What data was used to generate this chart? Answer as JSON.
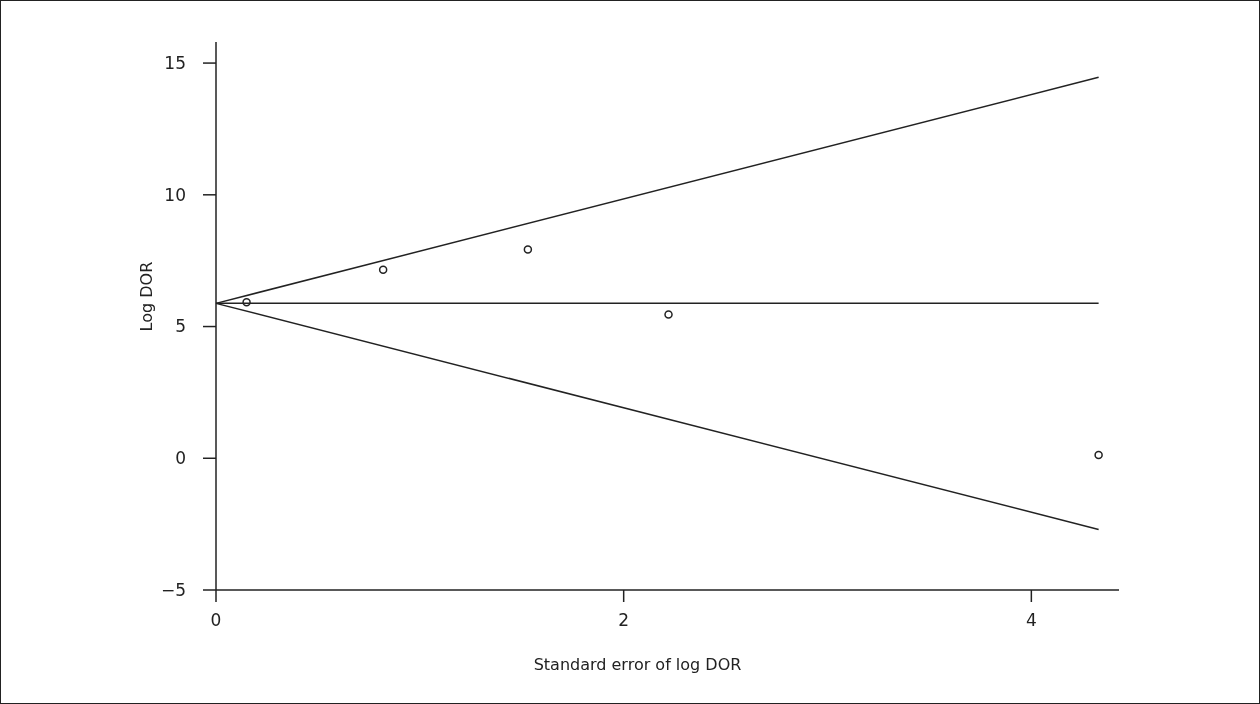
{
  "chart_data": {
    "type": "scatter",
    "xlabel": "Standard error of log DOR",
    "ylabel": "Log DOR",
    "xlim": [
      0,
      4.43
    ],
    "ylim": [
      -5,
      15.8
    ],
    "xticks": [
      0,
      2,
      4
    ],
    "yticks": [
      -5,
      0,
      5,
      10,
      15
    ],
    "grid": false,
    "series": [
      {
        "color": "#222222",
        "marker": "circle",
        "x": [
          0.15,
          0.82,
          1.53,
          2.22,
          4.33
        ],
        "values": [
          5.92,
          7.16,
          7.92,
          5.46,
          0.12
        ]
      },
      {
        "type": "line",
        "color": "#222222",
        "x": [
          0,
          4.33
        ],
        "values": [
          5.88,
          14.46
        ],
        "marker": "none"
      },
      {
        "type": "line",
        "color": "#222222",
        "x": [
          0,
          4.33
        ],
        "values": [
          5.88,
          5.88
        ],
        "marker": "none"
      },
      {
        "type": "line",
        "color": "#222222",
        "x": [
          0,
          4.33
        ],
        "values": [
          5.88,
          -2.7
        ],
        "marker": "none"
      }
    ]
  }
}
